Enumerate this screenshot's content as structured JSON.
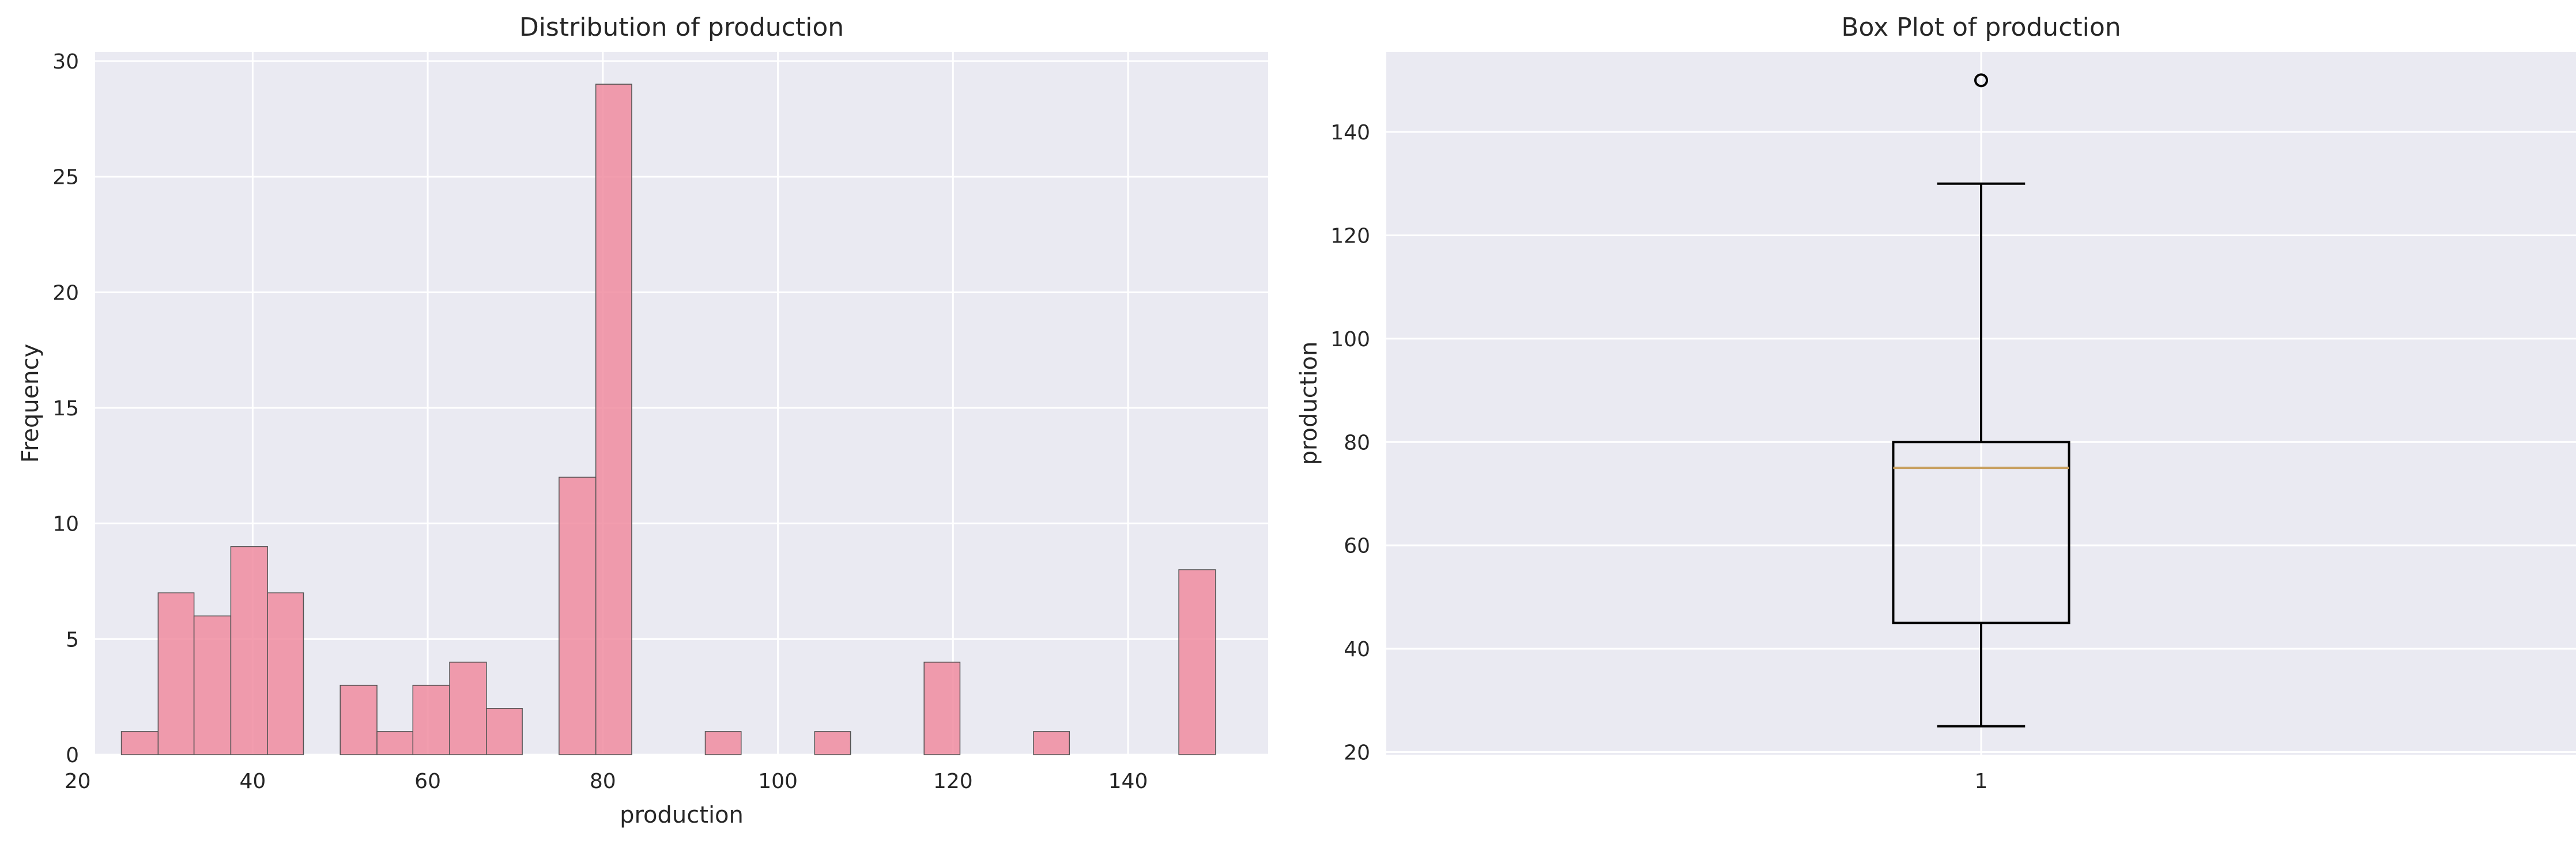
{
  "chart_data": [
    {
      "type": "bar",
      "title": "Distribution of production",
      "xlabel": "production",
      "ylabel": "Frequency",
      "xlim": [
        22,
        156
      ],
      "ylim": [
        0,
        30.4
      ],
      "xticks": [
        20,
        40,
        60,
        80,
        100,
        120,
        140
      ],
      "yticks": [
        0,
        5,
        10,
        15,
        20,
        25,
        30
      ],
      "grid": true,
      "color": "#f08ca0",
      "edge_color": "#555555",
      "bin_edges": [
        25,
        29.2,
        33.3,
        37.5,
        41.7,
        45.8,
        50,
        54.2,
        58.3,
        62.5,
        66.7,
        70.8,
        75,
        79.2,
        83.3,
        87.5,
        91.7,
        95.8,
        100,
        104.2,
        108.3,
        112.5,
        116.7,
        120.8,
        125,
        129.2,
        133.3,
        137.5,
        141.7,
        145.8,
        150
      ],
      "values": [
        1,
        7,
        6,
        9,
        7,
        0,
        3,
        1,
        3,
        4,
        2,
        0,
        12,
        29,
        0,
        0,
        1,
        0,
        0,
        1,
        0,
        0,
        4,
        0,
        0,
        1,
        0,
        0,
        0,
        8
      ]
    },
    {
      "type": "box",
      "title": "Box Plot of production",
      "xlabel": "",
      "ylabel": "production",
      "ylim": [
        19.5,
        155.5
      ],
      "yticks": [
        20,
        40,
        60,
        80,
        100,
        120,
        140
      ],
      "xticks": [
        "1"
      ],
      "grid": true,
      "median_color": "#c8a060",
      "boxes": [
        {
          "label": "1",
          "whisker_low": 25,
          "q1": 45,
          "median": 75,
          "q3": 80,
          "whisker_high": 130,
          "outliers": [
            150
          ]
        }
      ]
    }
  ]
}
